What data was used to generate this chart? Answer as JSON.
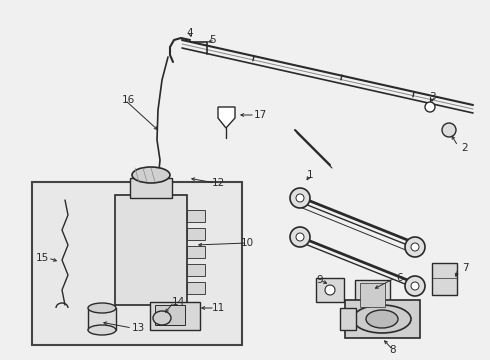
{
  "bg": "#f0f0f0",
  "white": "#ffffff",
  "lc": "#2a2a2a",
  "gray": "#cccccc",
  "box_bg": "#e8e8e8",
  "fig_w": 4.9,
  "fig_h": 3.6,
  "dpi": 100
}
